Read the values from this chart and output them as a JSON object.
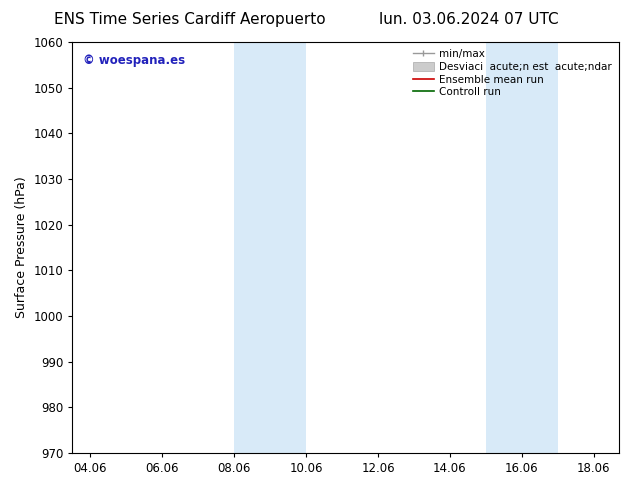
{
  "title_left": "ENS Time Series Cardiff Aeropuerto",
  "title_right": "lun. 03.06.2024 07 UTC",
  "ylabel": "Surface Pressure (hPa)",
  "ylim": [
    970,
    1060
  ],
  "yticks": [
    970,
    980,
    990,
    1000,
    1010,
    1020,
    1030,
    1040,
    1050,
    1060
  ],
  "xlim_start": 3.5,
  "xlim_end": 18.7,
  "xtick_labels": [
    "04.06",
    "06.06",
    "08.06",
    "10.06",
    "12.06",
    "14.06",
    "16.06",
    "18.06"
  ],
  "xtick_positions": [
    4,
    6,
    8,
    10,
    12,
    14,
    16,
    18
  ],
  "shaded_regions": [
    {
      "xmin": 8.0,
      "xmax": 10.0,
      "color": "#d8eaf8"
    },
    {
      "xmin": 15.0,
      "xmax": 17.0,
      "color": "#d8eaf8"
    }
  ],
  "watermark_text": "© woespana.es",
  "watermark_color": "#2222bb",
  "background_color": "#ffffff",
  "grid_color": "#dddddd",
  "spine_color": "#000000",
  "title_fontsize": 11,
  "tick_fontsize": 8.5,
  "ylabel_fontsize": 9,
  "legend_fontsize": 7.5
}
